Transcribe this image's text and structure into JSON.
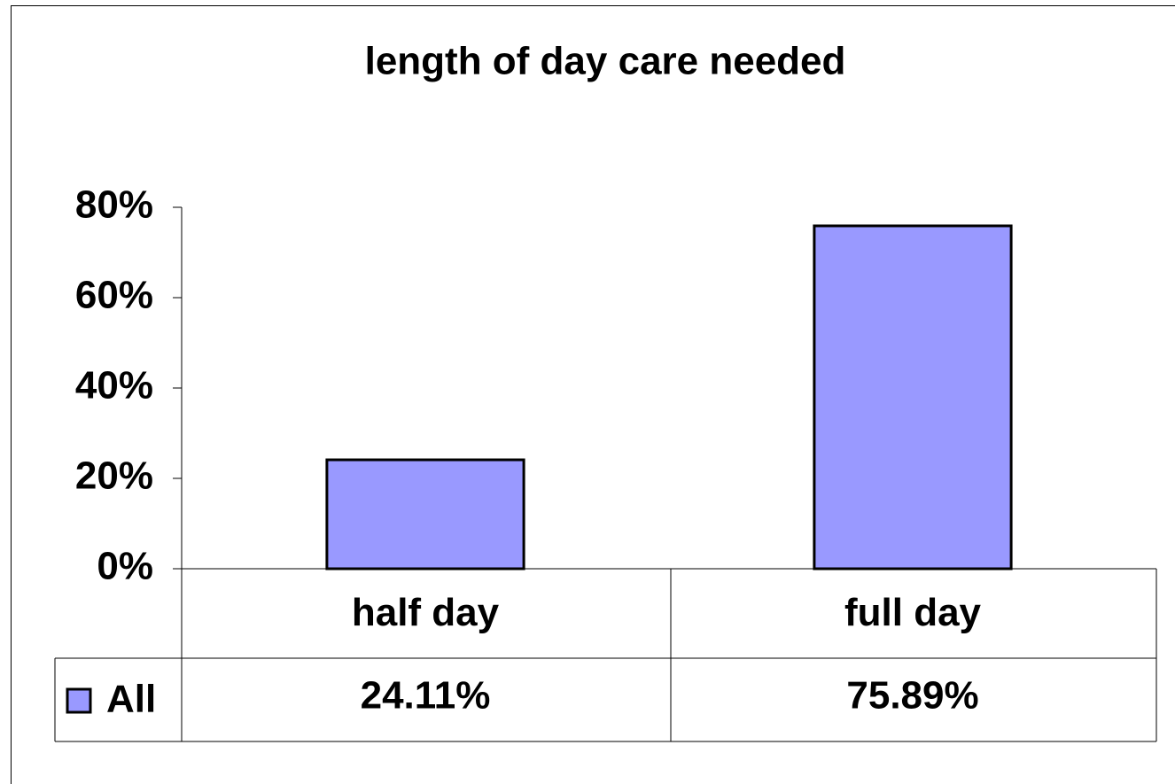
{
  "chart_data": {
    "type": "bar",
    "title": "length of day care needed",
    "categories": [
      "half day",
      "full day"
    ],
    "series": [
      {
        "name": "All",
        "color": "#9999ff",
        "values": [
          24.11,
          75.89
        ],
        "value_labels": [
          "24.11%",
          "75.89%"
        ]
      }
    ],
    "ylim": [
      0,
      80
    ],
    "yticks": [
      {
        "value": 0,
        "label": "0%"
      },
      {
        "value": 20,
        "label": "20%"
      },
      {
        "value": 40,
        "label": "40%"
      },
      {
        "value": 60,
        "label": "60%"
      },
      {
        "value": 80,
        "label": "80%"
      }
    ],
    "grid": false,
    "data_table": true
  }
}
